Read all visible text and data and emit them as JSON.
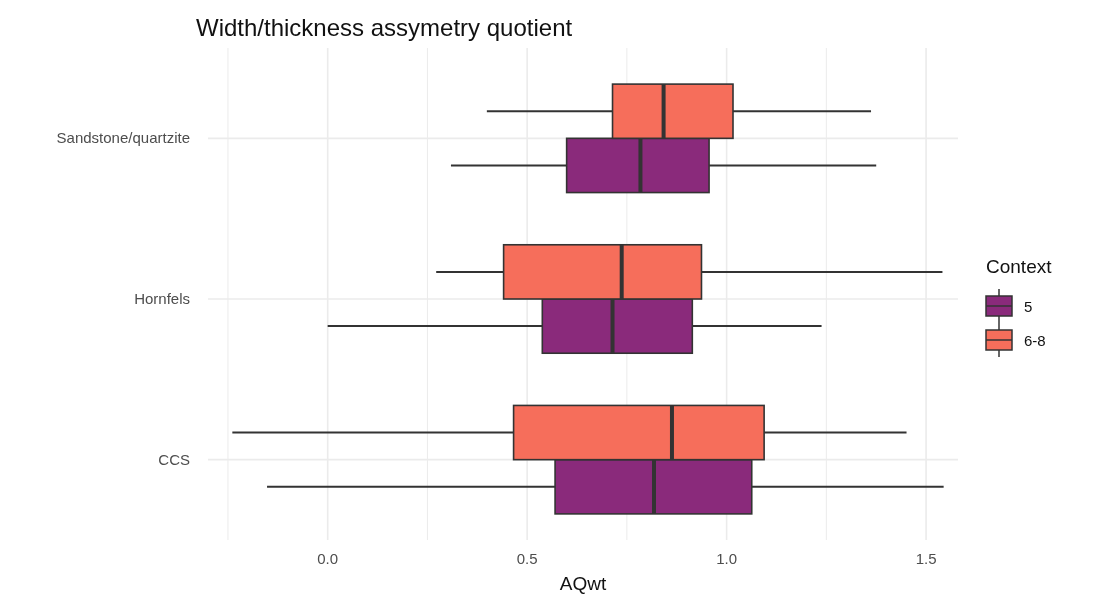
{
  "chart_data": {
    "type": "box",
    "title": "Width/thickness assymetry quotient",
    "xlabel": "AQwt",
    "legend_title": "Context",
    "orientation": "horizontal",
    "categories": [
      "Sandstone/quartzite",
      "Hornfels",
      "CCS"
    ],
    "xlim": [
      -0.3,
      1.58
    ],
    "xticks": [
      {
        "value": -0.25,
        "label": null
      },
      {
        "value": 0,
        "label": "0.0"
      },
      {
        "value": 0.25,
        "label": null
      },
      0.5,
      {
        "value": 0.75,
        "label": null
      },
      {
        "value": 1,
        "label": "1.0"
      },
      {
        "value": 1.25,
        "label": null
      },
      1.5
    ],
    "grid": true,
    "legend": "right",
    "series": [
      {
        "name": "5",
        "color": "#8a2a7b",
        "boxes": [
          {
            "low": 0.309,
            "q1": 0.599,
            "median": 0.784,
            "q3": 0.956,
            "high": 1.375
          },
          {
            "low": 0.0,
            "q1": 0.538,
            "median": 0.714,
            "q3": 0.914,
            "high": 1.238
          },
          {
            "low": -0.152,
            "q1": 0.57,
            "median": 0.818,
            "q3": 1.063,
            "high": 1.544
          }
        ]
      },
      {
        "name": "6-8",
        "color": "#f66e5b",
        "boxes": [
          {
            "low": 0.399,
            "q1": 0.714,
            "median": 0.842,
            "q3": 1.016,
            "high": 1.362
          },
          {
            "low": 0.272,
            "q1": 0.441,
            "median": 0.737,
            "q3": 0.937,
            "high": 1.541
          },
          {
            "low": -0.239,
            "q1": 0.466,
            "median": 0.863,
            "q3": 1.094,
            "high": 1.451
          }
        ]
      }
    ]
  }
}
